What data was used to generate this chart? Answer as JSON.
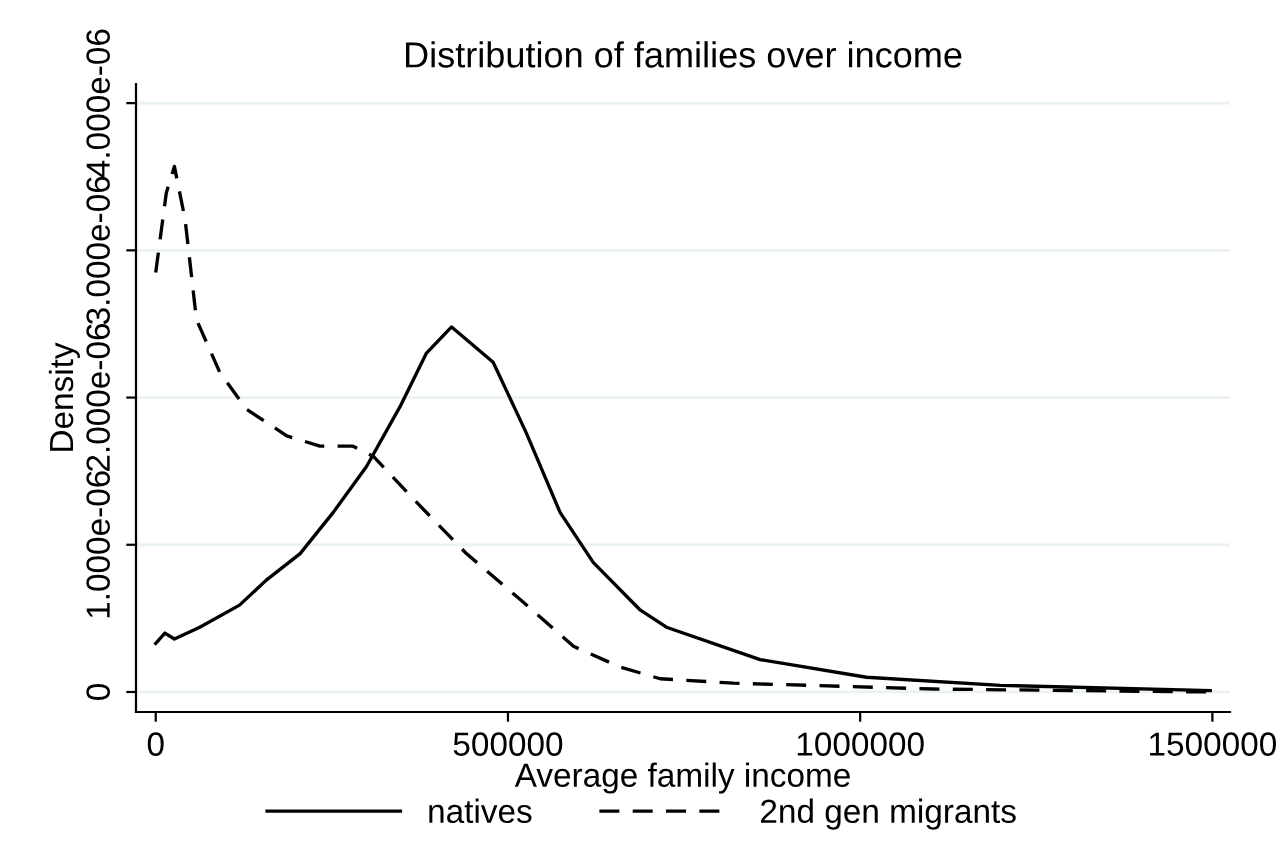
{
  "chart_data": {
    "type": "line",
    "title": "Distribution of families over income",
    "xlabel": "Average family income",
    "ylabel": "Density",
    "xlim": [
      -28000,
      1525000
    ],
    "xticks": [
      0,
      500000,
      1000000,
      1500000
    ],
    "ylim": [
      -1.36e-07,
      4.13e-06
    ],
    "yticks": [
      {
        "value": 0,
        "label": "0"
      },
      {
        "value": 1e-06,
        "label": "1.000e-06"
      },
      {
        "value": 2e-06,
        "label": "2.000e-06"
      },
      {
        "value": 3e-06,
        "label": "3.000e-06"
      },
      {
        "value": 4e-06,
        "label": "4.000e-06"
      }
    ],
    "grid": "y",
    "legend": "bottom",
    "series": [
      {
        "name": "natives",
        "color": "#000000",
        "line_style": "solid",
        "x": [
          0,
          13000,
          26500,
          62500,
          119000,
          157000,
          205000,
          252000,
          299000,
          347000,
          384000,
          420000,
          479000,
          526000,
          574000,
          621000,
          687000,
          725000,
          858000,
          1009000,
          1199000,
          1497000
        ],
        "values": [
          3.3e-07,
          4e-07,
          3.6e-07,
          4.4e-07,
          5.9e-07,
          7.6e-07,
          9.4e-07,
          1.22e-06,
          1.53e-06,
          1.94e-06,
          2.3e-06,
          2.48e-06,
          2.24e-06,
          1.76e-06,
          1.22e-06,
          8.8e-07,
          5.6e-07,
          4.4e-07,
          2.2e-07,
          1e-07,
          4.5e-08,
          1e-08
        ]
      },
      {
        "name": "2nd gen migrants",
        "color": "#000000",
        "line_style": "dashed",
        "x": [
          0,
          15000,
          26500,
          41700,
          57800,
          91000,
          129000,
          186000,
          233000,
          280000,
          309000,
          366000,
          441000,
          517000,
          593000,
          659000,
          716000,
          820000,
          1104000,
          1497000
        ],
        "values": [
          2.85e-06,
          3.39e-06,
          3.57e-06,
          3.21e-06,
          2.53e-06,
          2.17e-06,
          1.92e-06,
          1.74e-06,
          1.67e-06,
          1.67e-06,
          1.6e-06,
          1.31e-06,
          9.4e-07,
          6.3e-07,
          3.1e-07,
          1.7e-07,
          9e-08,
          6e-08,
          2e-08,
          0
        ]
      }
    ]
  }
}
